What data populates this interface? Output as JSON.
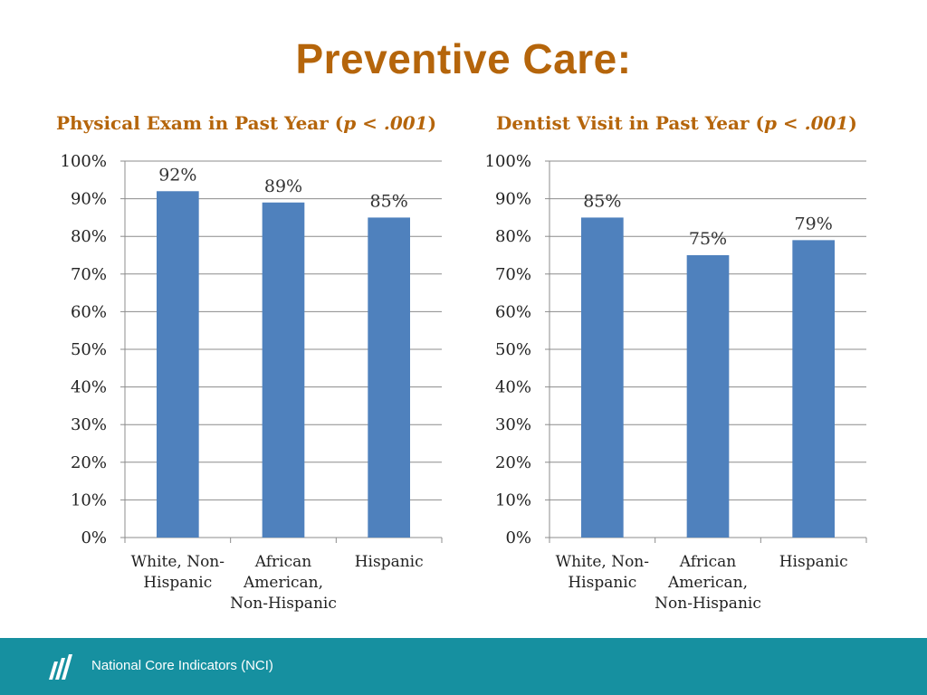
{
  "slide_title": "Preventive Care:",
  "footer": {
    "text": "National Core Indicators (NCI)",
    "logo_icon": "nci-logo-icon"
  },
  "chart_data": [
    {
      "type": "bar",
      "title_main": "Physical Exam in Past Year (",
      "title_p": "p < .001",
      "title_end": ")",
      "categories": [
        "White, Non-Hispanic",
        "African American, Non-Hispanic",
        "Hispanic"
      ],
      "category_lines": [
        [
          "White, Non-",
          "Hispanic"
        ],
        [
          "African",
          "American,",
          "Non-Hispanic"
        ],
        [
          "Hispanic"
        ]
      ],
      "values": [
        92,
        89,
        85
      ],
      "value_labels": [
        "92%",
        "89%",
        "85%"
      ],
      "ylim": [
        0,
        100
      ],
      "yticks": [
        "0%",
        "10%",
        "20%",
        "30%",
        "40%",
        "50%",
        "60%",
        "70%",
        "80%",
        "90%",
        "100%"
      ],
      "grid": true,
      "bar_color": "#4f81bd"
    },
    {
      "type": "bar",
      "title_main": "Dentist Visit in Past Year (",
      "title_p": "p < .001",
      "title_end": ")",
      "categories": [
        "White, Non-Hispanic",
        "African American, Non-Hispanic",
        "Hispanic"
      ],
      "category_lines": [
        [
          "White, Non-",
          "Hispanic"
        ],
        [
          "African",
          "American,",
          "Non-Hispanic"
        ],
        [
          "Hispanic"
        ]
      ],
      "values": [
        85,
        75,
        79
      ],
      "value_labels": [
        "85%",
        "75%",
        "79%"
      ],
      "ylim": [
        0,
        100
      ],
      "yticks": [
        "0%",
        "10%",
        "20%",
        "30%",
        "40%",
        "50%",
        "60%",
        "70%",
        "80%",
        "90%",
        "100%"
      ],
      "grid": true,
      "bar_color": "#4f81bd"
    }
  ]
}
